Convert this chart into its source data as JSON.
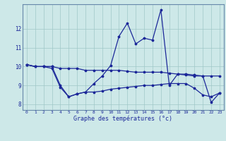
{
  "xlabel": "Graphe des températures (°c)",
  "x": [
    0,
    1,
    2,
    3,
    4,
    5,
    6,
    7,
    8,
    9,
    10,
    11,
    12,
    13,
    14,
    15,
    16,
    17,
    18,
    19,
    20,
    21,
    22,
    23
  ],
  "line_upper": [
    10.1,
    10.0,
    10.0,
    10.0,
    9.9,
    9.9,
    9.9,
    9.8,
    9.8,
    9.8,
    9.8,
    9.8,
    9.75,
    9.7,
    9.7,
    9.7,
    9.7,
    9.65,
    9.6,
    9.6,
    9.55,
    9.5,
    9.5,
    9.5
  ],
  "line_lower": [
    10.1,
    10.0,
    10.0,
    9.9,
    8.9,
    8.4,
    8.55,
    8.65,
    8.65,
    8.7,
    8.8,
    8.85,
    8.9,
    8.95,
    9.0,
    9.0,
    9.05,
    9.1,
    9.1,
    9.1,
    8.85,
    8.5,
    8.4,
    8.6
  ],
  "line_wild": [
    10.1,
    10.0,
    10.0,
    10.0,
    9.0,
    8.4,
    8.55,
    8.65,
    9.1,
    9.5,
    10.05,
    11.6,
    12.3,
    11.2,
    11.5,
    11.4,
    13.0,
    9.0,
    9.6,
    9.55,
    9.5,
    9.5,
    8.1,
    8.6
  ],
  "ylim": [
    7.7,
    13.3
  ],
  "yticks": [
    8,
    9,
    10,
    11,
    12
  ],
  "bg_color": "#cde8e8",
  "line_color": "#1c2899",
  "grid_color": "#a0c8c8",
  "font_color": "#1c2899",
  "spine_color": "#6688aa"
}
